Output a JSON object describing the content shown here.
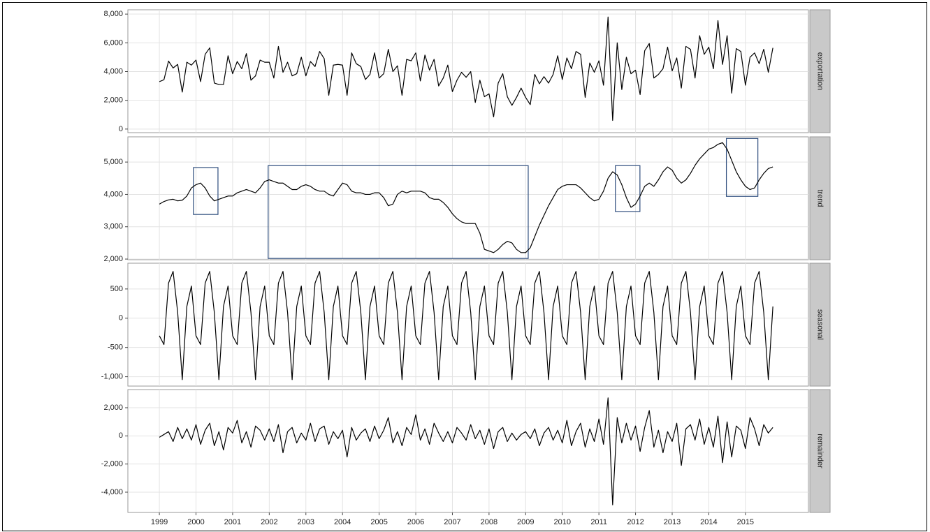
{
  "chart_data": {
    "type": "line",
    "color": "#000000",
    "box_color": "#2e4d7d",
    "grid": true,
    "xlim": [
      1998.14,
      2016.72
    ],
    "xticks": [
      1999,
      2000,
      2001,
      2002,
      2003,
      2004,
      2005,
      2006,
      2007,
      2008,
      2009,
      2010,
      2011,
      2012,
      2013,
      2014,
      2015
    ],
    "x": [
      1999,
      1999.125,
      1999.25,
      1999.375,
      1999.5,
      1999.625,
      1999.75,
      1999.875,
      2000,
      2000.125,
      2000.25,
      2000.375,
      2000.5,
      2000.625,
      2000.75,
      2000.875,
      2001,
      2001.125,
      2001.25,
      2001.375,
      2001.5,
      2001.625,
      2001.75,
      2001.875,
      2002,
      2002.125,
      2002.25,
      2002.375,
      2002.5,
      2002.625,
      2002.75,
      2002.875,
      2003,
      2003.125,
      2003.25,
      2003.375,
      2003.5,
      2003.625,
      2003.75,
      2003.875,
      2004,
      2004.125,
      2004.25,
      2004.375,
      2004.5,
      2004.625,
      2004.75,
      2004.875,
      2005,
      2005.125,
      2005.25,
      2005.375,
      2005.5,
      2005.625,
      2005.75,
      2005.875,
      2006,
      2006.125,
      2006.25,
      2006.375,
      2006.5,
      2006.625,
      2006.75,
      2006.875,
      2007,
      2007.125,
      2007.25,
      2007.375,
      2007.5,
      2007.625,
      2007.75,
      2007.875,
      2008,
      2008.125,
      2008.25,
      2008.375,
      2008.5,
      2008.625,
      2008.75,
      2008.875,
      2009,
      2009.125,
      2009.25,
      2009.375,
      2009.5,
      2009.625,
      2009.75,
      2009.875,
      2010,
      2010.125,
      2010.25,
      2010.375,
      2010.5,
      2010.625,
      2010.75,
      2010.875,
      2011,
      2011.125,
      2011.25,
      2011.375,
      2011.5,
      2011.625,
      2011.75,
      2011.875,
      2012,
      2012.125,
      2012.25,
      2012.375,
      2012.5,
      2012.625,
      2012.75,
      2012.875,
      2013,
      2013.125,
      2013.25,
      2013.375,
      2013.5,
      2013.625,
      2013.75,
      2013.875,
      2014,
      2014.125,
      2014.25,
      2014.375,
      2014.5,
      2014.625,
      2014.75,
      2014.875,
      2015,
      2015.125,
      2015.25,
      2015.375,
      2015.5,
      2015.625,
      2015.75
    ],
    "panels": [
      {
        "label": "exportation",
        "ylim": [
          -250,
          8300
        ],
        "yticks": [
          0,
          {
            "value": 2000,
            "label": "2,000"
          },
          {
            "value": 4000,
            "label": "4,000"
          },
          {
            "value": 6000,
            "label": "6,000"
          },
          {
            "value": 8000,
            "label": "8,000"
          }
        ],
        "values": [
          3300,
          3430,
          4730,
          4250,
          4500,
          2570,
          4650,
          4450,
          4800,
          3300,
          5200,
          5650,
          3200,
          3100,
          3100,
          5100,
          3850,
          4700,
          4200,
          5250,
          3400,
          3700,
          4800,
          4650,
          4650,
          3550,
          5750,
          3950,
          4650,
          3700,
          3850,
          5000,
          3700,
          4700,
          4350,
          5400,
          4900,
          2350,
          4450,
          4500,
          4450,
          2350,
          5300,
          4550,
          4350,
          3450,
          3800,
          5300,
          3550,
          3850,
          5550,
          4000,
          4400,
          2350,
          4850,
          4750,
          5300,
          3350,
          5150,
          4100,
          4850,
          3000,
          3550,
          4450,
          2600,
          3400,
          3950,
          3600,
          4000,
          1850,
          3400,
          2250,
          2450,
          850,
          3200,
          3850,
          2250,
          1650,
          2200,
          2850,
          2200,
          1700,
          3800,
          3150,
          3650,
          3200,
          3800,
          5100,
          3450,
          4950,
          4200,
          5400,
          5200,
          2200,
          4600,
          3950,
          4750,
          3050,
          7800,
          600,
          6000,
          2750,
          5000,
          3850,
          4100,
          2400,
          5450,
          5950,
          3550,
          3800,
          4200,
          5700,
          4050,
          4950,
          2850,
          5750,
          5550,
          3550,
          6500,
          5200,
          5700,
          4200,
          7550,
          4500,
          6500,
          2500,
          5600,
          5400,
          3050,
          5000,
          5300,
          4550,
          5550,
          3950,
          5650
        ]
      },
      {
        "label": "trend",
        "ylim": [
          1980,
          5780
        ],
        "yticks": [
          {
            "value": 2000,
            "label": "2,000"
          },
          {
            "value": 3000,
            "label": "3,000"
          },
          {
            "value": 4000,
            "label": "4,000"
          },
          {
            "value": 5000,
            "label": "5,000"
          }
        ],
        "boxes": [
          {
            "xlim": [
              1999.93,
              2000.6
            ],
            "ylim": [
              3380,
              4830
            ]
          },
          {
            "xlim": [
              2001.97,
              2009.07
            ],
            "ylim": [
              2020,
              4890
            ]
          },
          {
            "xlim": [
              2011.45,
              2012.12
            ],
            "ylim": [
              3470,
              4890
            ]
          },
          {
            "xlim": [
              2014.48,
              2015.34
            ],
            "ylim": [
              3940,
              5730
            ]
          }
        ],
        "values": [
          3700,
          3780,
          3830,
          3850,
          3800,
          3820,
          3950,
          4200,
          4300,
          4350,
          4200,
          3950,
          3800,
          3850,
          3900,
          3950,
          3950,
          4050,
          4100,
          4150,
          4100,
          4050,
          4200,
          4400,
          4450,
          4400,
          4350,
          4350,
          4250,
          4150,
          4150,
          4250,
          4300,
          4250,
          4150,
          4100,
          4100,
          4000,
          3950,
          4150,
          4350,
          4300,
          4100,
          4050,
          4050,
          4000,
          4000,
          4050,
          4050,
          3900,
          3650,
          3700,
          4000,
          4100,
          4050,
          4100,
          4100,
          4100,
          4050,
          3900,
          3850,
          3850,
          3750,
          3600,
          3400,
          3250,
          3150,
          3100,
          3100,
          3100,
          2800,
          2300,
          2250,
          2200,
          2300,
          2450,
          2550,
          2500,
          2300,
          2200,
          2200,
          2350,
          2700,
          3050,
          3350,
          3650,
          3900,
          4150,
          4250,
          4300,
          4300,
          4300,
          4200,
          4050,
          3900,
          3800,
          3850,
          4100,
          4500,
          4700,
          4600,
          4300,
          3900,
          3600,
          3700,
          3950,
          4250,
          4350,
          4250,
          4450,
          4700,
          4850,
          4750,
          4500,
          4350,
          4450,
          4650,
          4900,
          5100,
          5250,
          5400,
          5450,
          5550,
          5600,
          5400,
          5050,
          4700,
          4450,
          4250,
          4150,
          4200,
          4450,
          4650,
          4800,
          4850
        ]
      },
      {
        "label": "seasonal",
        "ylim": [
          -1160,
          940
        ],
        "yticks": [
          {
            "value": -1000,
            "label": "-1,000"
          },
          -500,
          0,
          500
        ],
        "values": [
          -300,
          -450,
          600,
          800,
          100,
          -1050,
          200,
          550,
          -300,
          -450,
          600,
          800,
          100,
          -1050,
          200,
          550,
          -300,
          -450,
          600,
          800,
          100,
          -1050,
          200,
          550,
          -300,
          -450,
          600,
          800,
          100,
          -1050,
          200,
          550,
          -300,
          -450,
          600,
          800,
          100,
          -1050,
          200,
          550,
          -300,
          -450,
          600,
          800,
          100,
          -1050,
          200,
          550,
          -300,
          -450,
          600,
          800,
          100,
          -1050,
          200,
          550,
          -300,
          -450,
          600,
          800,
          100,
          -1050,
          200,
          550,
          -300,
          -450,
          600,
          800,
          100,
          -1050,
          200,
          550,
          -300,
          -450,
          600,
          800,
          100,
          -1050,
          200,
          550,
          -300,
          -450,
          600,
          800,
          100,
          -1050,
          200,
          550,
          -300,
          -450,
          600,
          800,
          100,
          -1050,
          200,
          550,
          -300,
          -450,
          600,
          800,
          100,
          -1050,
          200,
          550,
          -300,
          -450,
          600,
          800,
          100,
          -1050,
          200,
          550,
          -300,
          -450,
          600,
          800,
          100,
          -1050,
          200,
          550,
          -300,
          -450,
          600,
          800,
          100,
          -1050,
          200,
          550,
          -300,
          -450,
          600,
          800,
          100,
          -1050,
          200
        ]
      },
      {
        "label": "remainder",
        "ylim": [
          -5440,
          3290
        ],
        "yticks": [
          {
            "value": -4000,
            "label": "-4,000"
          },
          {
            "value": -2000,
            "label": "-2,000"
          },
          0,
          {
            "value": 2000,
            "label": "2,000"
          }
        ],
        "values": [
          -100,
          100,
          300,
          -400,
          600,
          -200,
          500,
          -300,
          800,
          -600,
          400,
          900,
          -700,
          300,
          -1000,
          600,
          200,
          1100,
          -500,
          300,
          -800,
          700,
          400,
          -300,
          500,
          -400,
          800,
          -1200,
          300,
          600,
          -500,
          200,
          -300,
          900,
          -400,
          500,
          700,
          -600,
          300,
          -200,
          400,
          -1500,
          600,
          -300,
          200,
          500,
          -400,
          700,
          -200,
          400,
          1300,
          -500,
          300,
          -700,
          600,
          100,
          1500,
          -300,
          500,
          -600,
          900,
          200,
          -400,
          300,
          -500,
          600,
          200,
          -300,
          800,
          -200,
          400,
          -600,
          500,
          -900,
          300,
          600,
          -400,
          200,
          -300,
          100,
          300,
          -200,
          500,
          -700,
          200,
          600,
          -300,
          400,
          -500,
          1100,
          -700,
          300,
          900,
          -800,
          500,
          -400,
          1200,
          -600,
          2700,
          -4900,
          1300,
          -500,
          900,
          -300,
          700,
          -1100,
          600,
          1800,
          -800,
          400,
          -1200,
          300,
          -400,
          900,
          -2100,
          500,
          800,
          -300,
          1200,
          -600,
          600,
          -800,
          1400,
          -1900,
          1000,
          -1500,
          700,
          400,
          -900,
          1300,
          500,
          -700,
          800,
          200,
          600
        ]
      }
    ]
  }
}
